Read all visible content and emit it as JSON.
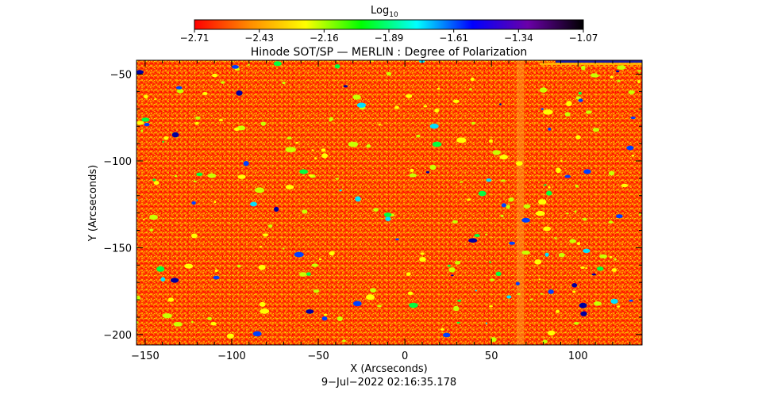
{
  "chart_data": {
    "type": "heatmap",
    "title": "Hinode SOT/SP — MERLIN : Degree of Polarization",
    "xlabel": "X (Arcseconds)",
    "ylabel": "Y (Arcseconds)",
    "xlim": [
      -155,
      137
    ],
    "ylim": [
      -206,
      -42
    ],
    "x_ticks": [
      -150,
      -100,
      -50,
      0,
      50,
      100
    ],
    "y_ticks": [
      -50,
      -100,
      -150,
      -200
    ],
    "x_tick_labels": [
      "−150",
      "−100",
      "−50",
      "0",
      "50",
      "100"
    ],
    "y_tick_labels": [
      "−50",
      "−100",
      "−150",
      "−200"
    ],
    "colorbar": {
      "label_base": "Log",
      "label_sub": "10",
      "range": [
        -2.71,
        -1.07
      ],
      "tick_labels": [
        "−2.71",
        "−2.43",
        "−2.16",
        "−1.89",
        "−1.61",
        "−1.34",
        "−1.07"
      ],
      "colors": [
        "#ff0000",
        "#ff8c00",
        "#ffff00",
        "#00ff00",
        "#00ffff",
        "#0000ff",
        "#6a00a8",
        "#000000"
      ]
    },
    "footer": "9−Jul−2022 02:16:35.178"
  }
}
